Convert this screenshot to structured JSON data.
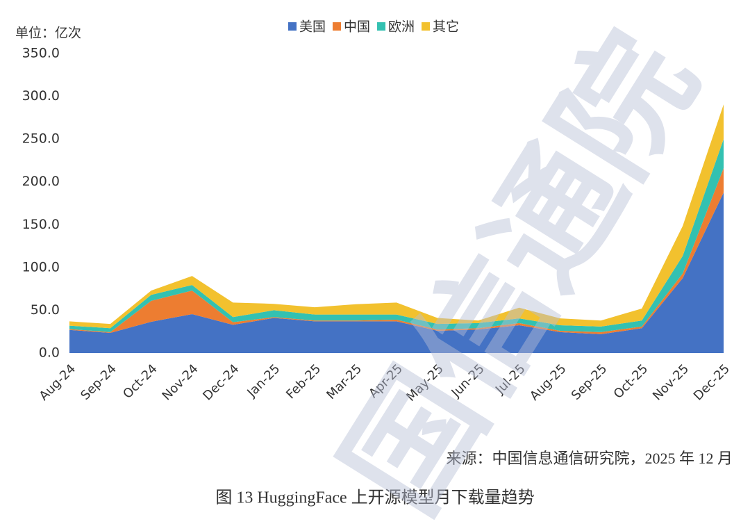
{
  "chart_data": {
    "type": "stacked-area",
    "unit_label": "单位：亿次",
    "categories": [
      "Aug-24",
      "Sep-24",
      "Oct-24",
      "Nov-24",
      "Dec-24",
      "Jan-25",
      "Feb-25",
      "Mar-25",
      "Apr-25",
      "May-25",
      "Jun-25",
      "Jul-25",
      "Aug-25",
      "Sep-25",
      "Oct-25",
      "Nov-25",
      "Dec-25"
    ],
    "series": [
      {
        "name": "美国",
        "color": "#4472c4",
        "values": [
          27,
          23.5,
          36.5,
          45.5,
          33,
          41,
          37,
          37,
          37,
          26,
          27.5,
          32.5,
          24.5,
          22,
          29,
          87.5,
          187.5
        ]
      },
      {
        "name": "中国",
        "color": "#ed7d31",
        "values": [
          1,
          1,
          24.5,
          27.5,
          3,
          1,
          1,
          1,
          2,
          1.5,
          1.5,
          2.5,
          1.5,
          2.5,
          2,
          5.5,
          28.5
        ]
      },
      {
        "name": "欧洲",
        "color": "#33c1b1",
        "values": [
          4,
          4.5,
          7,
          6.5,
          6,
          8,
          7,
          7,
          6,
          6.5,
          6,
          5.5,
          6.5,
          6.5,
          7,
          20.5,
          34
        ]
      },
      {
        "name": "其它",
        "color": "#f2c12e",
        "values": [
          5,
          5,
          5,
          10.5,
          17,
          7.5,
          8.5,
          12,
          14,
          7,
          3,
          12.5,
          8,
          7,
          14,
          35,
          40.5
        ]
      }
    ],
    "ylim": [
      0,
      350
    ],
    "yticks": [
      {
        "value": 0,
        "label": "0.0"
      },
      {
        "value": 50,
        "label": "50.0"
      },
      {
        "value": 100,
        "label": "100.0"
      },
      {
        "value": 150,
        "label": "150.0"
      },
      {
        "value": 200,
        "label": "200.0"
      },
      {
        "value": 250,
        "label": "250.0"
      },
      {
        "value": 300,
        "label": "300.0"
      },
      {
        "value": 350,
        "label": "350.0"
      }
    ],
    "source": "来源：中国信息通信研究院，2025 年 12 月",
    "caption": "图  13 HuggingFace 上开源模型月下载量趋势",
    "watermark": "国信通院"
  }
}
